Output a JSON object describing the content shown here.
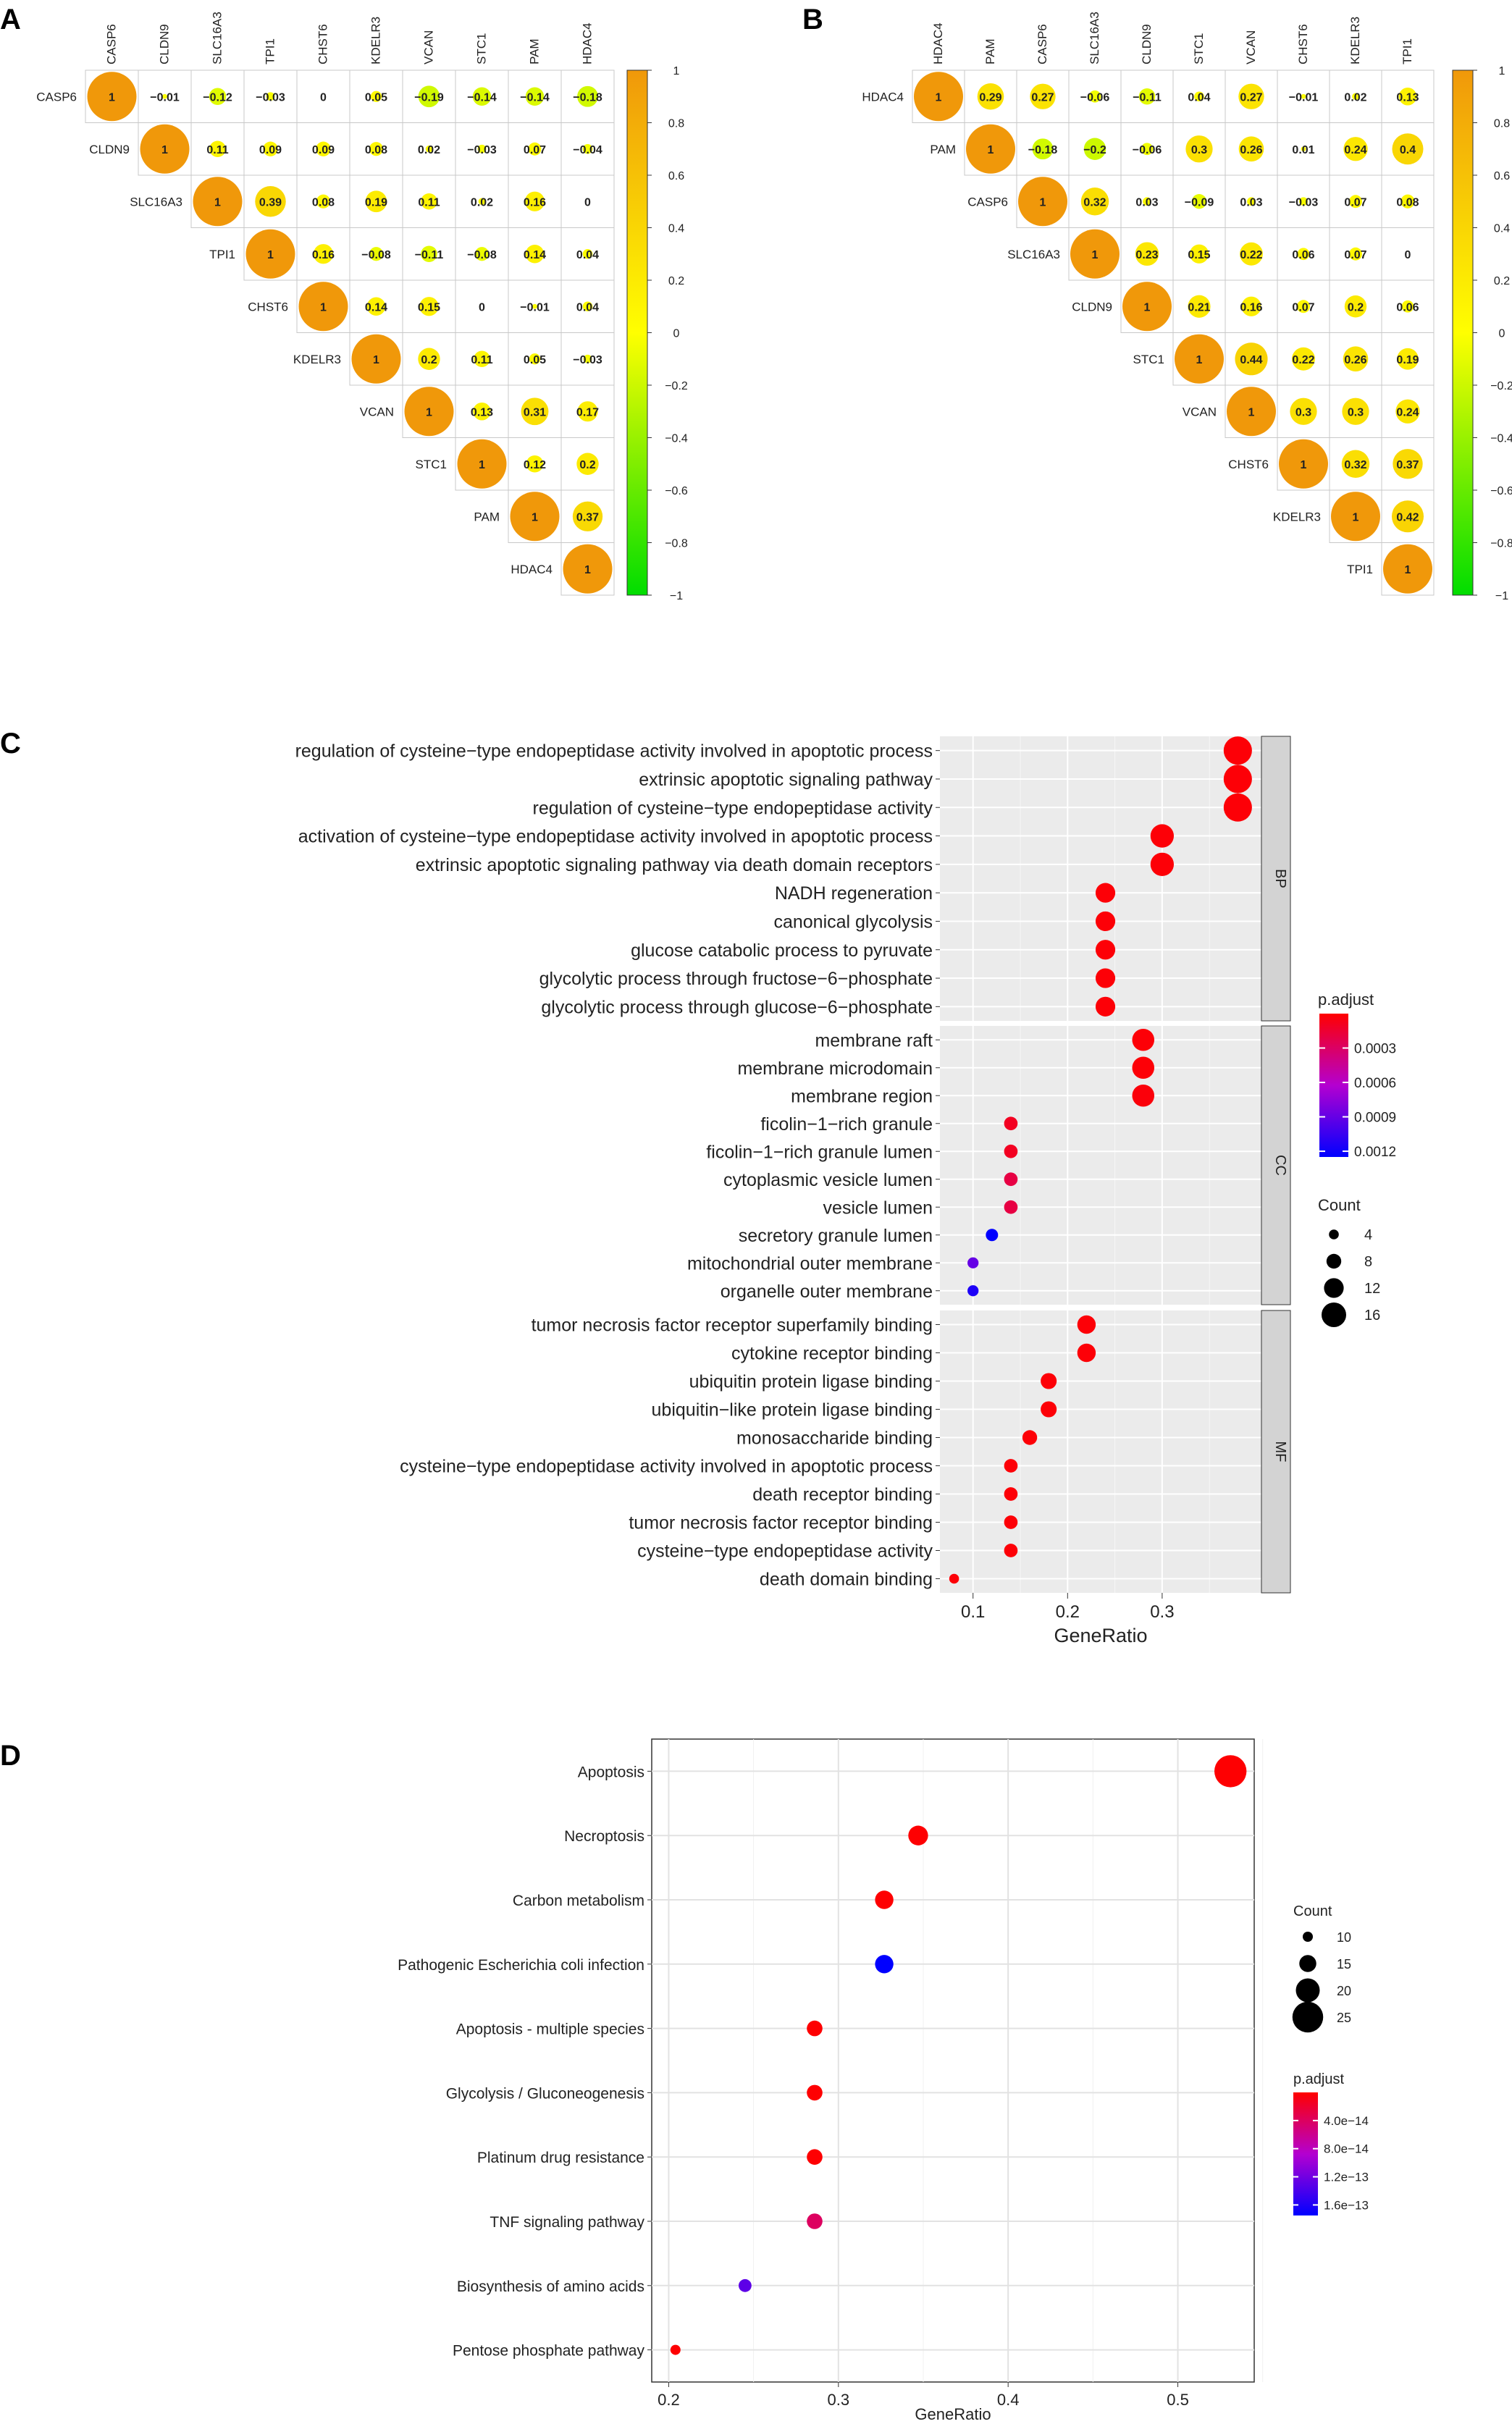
{
  "chart_data": [
    {
      "panel": "A",
      "type": "heatmap",
      "genes": [
        "CASP6",
        "CLDN9",
        "SLC16A3",
        "TPI1",
        "CHST6",
        "KDELR3",
        "VCAN",
        "STC1",
        "PAM",
        "HDAC4"
      ],
      "matrix": [
        [
          1,
          -0.01,
          -0.12,
          -0.03,
          0,
          0.05,
          -0.19,
          -0.14,
          -0.14,
          -0.18
        ],
        [
          null,
          1,
          0.11,
          0.09,
          0.09,
          0.08,
          0.02,
          -0.03,
          0.07,
          -0.04
        ],
        [
          null,
          null,
          1,
          0.39,
          0.08,
          0.19,
          0.11,
          0.02,
          0.16,
          0
        ],
        [
          null,
          null,
          null,
          1,
          0.16,
          -0.08,
          -0.11,
          -0.08,
          0.14,
          0.04
        ],
        [
          null,
          null,
          null,
          null,
          1,
          0.14,
          0.15,
          0,
          -0.01,
          0.04
        ],
        [
          null,
          null,
          null,
          null,
          null,
          1,
          0.2,
          0.11,
          0.05,
          -0.03
        ],
        [
          null,
          null,
          null,
          null,
          null,
          null,
          1,
          0.13,
          0.31,
          0.17
        ],
        [
          null,
          null,
          null,
          null,
          null,
          null,
          null,
          1,
          0.12,
          0.2
        ],
        [
          null,
          null,
          null,
          null,
          null,
          null,
          null,
          null,
          1,
          0.37
        ],
        [
          null,
          null,
          null,
          null,
          null,
          null,
          null,
          null,
          null,
          1
        ]
      ],
      "colorbar_ticks": [
        "1",
        "0.8",
        "0.6",
        "0.4",
        "0.2",
        "0",
        "−0.2",
        "−0.4",
        "−0.6",
        "−0.8",
        "−1"
      ]
    },
    {
      "panel": "B",
      "type": "heatmap",
      "genes": [
        "HDAC4",
        "PAM",
        "CASP6",
        "SLC16A3",
        "CLDN9",
        "STC1",
        "VCAN",
        "CHST6",
        "KDELR3",
        "TPI1"
      ],
      "matrix": [
        [
          1,
          0.29,
          0.27,
          -0.06,
          -0.11,
          0.04,
          0.27,
          -0.01,
          0.02,
          0.13
        ],
        [
          null,
          1,
          -0.18,
          -0.2,
          -0.06,
          0.3,
          0.26,
          0.01,
          0.24,
          0.4
        ],
        [
          null,
          null,
          1,
          0.32,
          0.03,
          -0.09,
          0.03,
          -0.03,
          0.07,
          0.08
        ],
        [
          null,
          null,
          null,
          1,
          0.23,
          0.15,
          0.22,
          0.06,
          0.07,
          0
        ],
        [
          null,
          null,
          null,
          null,
          1,
          0.21,
          0.16,
          0.07,
          0.2,
          0.06
        ],
        [
          null,
          null,
          null,
          null,
          null,
          1,
          0.44,
          0.22,
          0.26,
          0.19
        ],
        [
          null,
          null,
          null,
          null,
          null,
          null,
          1,
          0.3,
          0.3,
          0.24
        ],
        [
          null,
          null,
          null,
          null,
          null,
          null,
          null,
          1,
          0.32,
          0.37
        ],
        [
          null,
          null,
          null,
          null,
          null,
          null,
          null,
          null,
          1,
          0.42
        ],
        [
          null,
          null,
          null,
          null,
          null,
          null,
          null,
          null,
          null,
          1
        ]
      ],
      "colorbar_ticks": [
        "1",
        "0.8",
        "0.6",
        "0.4",
        "0.2",
        "0",
        "−0.2",
        "−0.4",
        "−0.6",
        "−0.8",
        "−1"
      ]
    },
    {
      "panel": "C",
      "type": "scatter",
      "xlabel": "GeneRatio",
      "xlim": [
        0.065,
        0.405
      ],
      "xticks": [
        0.1,
        0.2,
        0.3
      ],
      "xtick_labels": [
        "0.1",
        "0.2",
        "0.3"
      ],
      "facets": [
        {
          "name": "BP",
          "terms": [
            {
              "label": "regulation of cysteine−type endopeptidase activity involved in apoptotic process",
              "x": 0.38,
              "count": 19,
              "padj": 2e-05
            },
            {
              "label": "extrinsic apoptotic signaling pathway",
              "x": 0.38,
              "count": 19,
              "padj": 2e-05
            },
            {
              "label": "regulation of cysteine−type endopeptidase activity",
              "x": 0.38,
              "count": 19,
              "padj": 2e-05
            },
            {
              "label": "activation of cysteine−type endopeptidase activity involved in apoptotic process",
              "x": 0.3,
              "count": 15,
              "padj": 2e-05
            },
            {
              "label": "extrinsic apoptotic signaling pathway via death domain receptors",
              "x": 0.3,
              "count": 15,
              "padj": 2e-05
            },
            {
              "label": "NADH regeneration",
              "x": 0.24,
              "count": 12,
              "padj": 2e-05
            },
            {
              "label": "canonical glycolysis",
              "x": 0.24,
              "count": 12,
              "padj": 2e-05
            },
            {
              "label": "glucose catabolic process to pyruvate",
              "x": 0.24,
              "count": 12,
              "padj": 2e-05
            },
            {
              "label": "glycolytic process through fructose−6−phosphate",
              "x": 0.24,
              "count": 12,
              "padj": 2e-05
            },
            {
              "label": "glycolytic process through glucose−6−phosphate",
              "x": 0.24,
              "count": 12,
              "padj": 2e-05
            }
          ]
        },
        {
          "name": "CC",
          "terms": [
            {
              "label": "membrane raft",
              "x": 0.28,
              "count": 14,
              "padj": 2e-05
            },
            {
              "label": "membrane microdomain",
              "x": 0.28,
              "count": 14,
              "padj": 2e-05
            },
            {
              "label": "membrane region",
              "x": 0.28,
              "count": 14,
              "padj": 3e-05
            },
            {
              "label": "ficolin−1−rich granule",
              "x": 0.14,
              "count": 7,
              "padj": 0.0001
            },
            {
              "label": "ficolin−1−rich granule lumen",
              "x": 0.14,
              "count": 7,
              "padj": 0.0001
            },
            {
              "label": "cytoplasmic vesicle lumen",
              "x": 0.14,
              "count": 7,
              "padj": 0.0002
            },
            {
              "label": "vesicle lumen",
              "x": 0.14,
              "count": 7,
              "padj": 0.0002
            },
            {
              "label": "secretory granule lumen",
              "x": 0.12,
              "count": 6,
              "padj": 0.00125
            },
            {
              "label": "mitochondrial outer membrane",
              "x": 0.1,
              "count": 5,
              "padj": 0.0009
            },
            {
              "label": "organelle outer membrane",
              "x": 0.1,
              "count": 5,
              "padj": 0.00115
            }
          ]
        },
        {
          "name": "MF",
          "terms": [
            {
              "label": "tumor necrosis factor receptor superfamily binding",
              "x": 0.22,
              "count": 11,
              "padj": 2e-05
            },
            {
              "label": "cytokine receptor binding",
              "x": 0.22,
              "count": 11,
              "padj": 2e-05
            },
            {
              "label": "ubiquitin protein ligase binding",
              "x": 0.18,
              "count": 9,
              "padj": 2e-05
            },
            {
              "label": "ubiquitin−like protein ligase binding",
              "x": 0.18,
              "count": 9,
              "padj": 2e-05
            },
            {
              "label": "monosaccharide binding",
              "x": 0.16,
              "count": 8,
              "padj": 2e-05
            },
            {
              "label": "cysteine−type endopeptidase activity involved in apoptotic process",
              "x": 0.14,
              "count": 7,
              "padj": 2e-05
            },
            {
              "label": "death receptor binding",
              "x": 0.14,
              "count": 7,
              "padj": 2e-05
            },
            {
              "label": "tumor necrosis factor receptor binding",
              "x": 0.14,
              "count": 7,
              "padj": 2e-05
            },
            {
              "label": "cysteine−type endopeptidase activity",
              "x": 0.14,
              "count": 7,
              "padj": 2e-05
            },
            {
              "label": "death domain binding",
              "x": 0.08,
              "count": 4,
              "padj": 2e-05
            }
          ]
        }
      ],
      "padj_legend": {
        "title": "p.adjust",
        "range": [
          0,
          0.00125
        ],
        "ticks": [
          0.0003,
          0.0006,
          0.0009,
          0.0012
        ],
        "tick_labels": [
          "0.0003",
          "0.0006",
          "0.0009",
          "0.0012"
        ]
      },
      "count_legend": {
        "title": "Count",
        "values": [
          4,
          8,
          12,
          16
        ],
        "labels": [
          "4",
          "8",
          "12",
          "16"
        ]
      }
    },
    {
      "panel": "D",
      "type": "scatter",
      "xlabel": "GeneRatio",
      "xlim": [
        0.19,
        0.545
      ],
      "xticks": [
        0.2,
        0.3,
        0.4,
        0.5
      ],
      "xtick_labels": [
        "0.2",
        "0.3",
        "0.4",
        "0.5"
      ],
      "terms": [
        {
          "label": "Apoptosis",
          "x": 0.531,
          "count": 26,
          "padj": 1e-15
        },
        {
          "label": "Necroptosis",
          "x": 0.347,
          "count": 17,
          "padj": 1e-15
        },
        {
          "label": "Carbon metabolism",
          "x": 0.327,
          "count": 16,
          "padj": 1e-15
        },
        {
          "label": "Pathogenic Escherichia coli infection",
          "x": 0.327,
          "count": 16,
          "padj": 1.75e-13
        },
        {
          "label": "Apoptosis - multiple species",
          "x": 0.286,
          "count": 14,
          "padj": 1e-15
        },
        {
          "label": "Glycolysis / Gluconeogenesis",
          "x": 0.286,
          "count": 14,
          "padj": 1e-15
        },
        {
          "label": "Platinum drug resistance",
          "x": 0.286,
          "count": 14,
          "padj": 1e-15
        },
        {
          "label": "TNF signaling pathway",
          "x": 0.286,
          "count": 14,
          "padj": 4e-14
        },
        {
          "label": "Biosynthesis of amino acids",
          "x": 0.245,
          "count": 12,
          "padj": 1.3e-13
        },
        {
          "label": "Pentose phosphate pathway",
          "x": 0.204,
          "count": 10,
          "padj": 1e-15
        }
      ],
      "count_legend": {
        "title": "Count",
        "values": [
          10,
          15,
          20,
          25
        ],
        "labels": [
          "10",
          "15",
          "20",
          "25"
        ]
      },
      "padj_legend": {
        "title": "p.adjust",
        "range": [
          0,
          1.75e-13
        ],
        "ticks": [
          4e-14,
          8e-14,
          1.2e-13,
          1.6e-13
        ],
        "tick_labels": [
          "4.0e−14",
          "8.0e−14",
          "1.2e−13",
          "1.6e−13"
        ]
      }
    }
  ]
}
